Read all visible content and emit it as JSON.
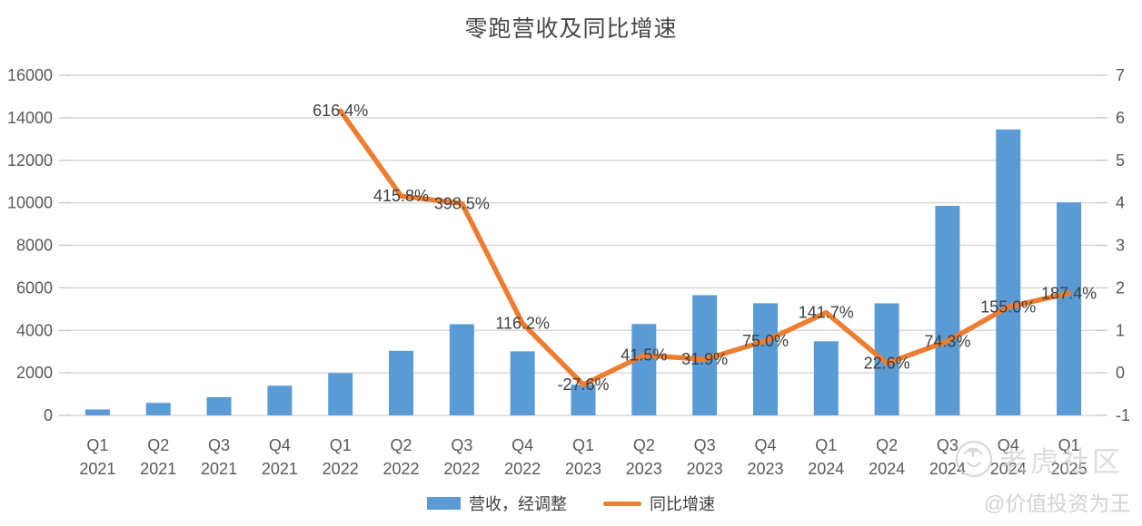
{
  "page": {
    "title": "零跑营收及同比增速"
  },
  "legend": [
    {
      "label": "营收，经调整",
      "type": "bar",
      "color": "#5B9BD5"
    },
    {
      "label": "同比增速",
      "type": "line",
      "color": "#ED7D31"
    }
  ],
  "watermark": {
    "community": "老虎社区",
    "author": "@价值投资为王",
    "logo_icon": "tiger-head-circle-icon",
    "color": "#cccccc"
  },
  "chart_data": {
    "type": "bar",
    "subtype": "combo bar+line, dual axis",
    "title": "零跑营收及同比增速",
    "categories": [
      {
        "quarter": "Q1",
        "year": "2021"
      },
      {
        "quarter": "Q2",
        "year": "2021"
      },
      {
        "quarter": "Q3",
        "year": "2021"
      },
      {
        "quarter": "Q4",
        "year": "2021"
      },
      {
        "quarter": "Q1",
        "year": "2022"
      },
      {
        "quarter": "Q2",
        "year": "2022"
      },
      {
        "quarter": "Q3",
        "year": "2022"
      },
      {
        "quarter": "Q4",
        "year": "2022"
      },
      {
        "quarter": "Q1",
        "year": "2023"
      },
      {
        "quarter": "Q2",
        "year": "2023"
      },
      {
        "quarter": "Q3",
        "year": "2023"
      },
      {
        "quarter": "Q4",
        "year": "2023"
      },
      {
        "quarter": "Q1",
        "year": "2024"
      },
      {
        "quarter": "Q2",
        "year": "2024"
      },
      {
        "quarter": "Q3",
        "year": "2024"
      },
      {
        "quarter": "Q4",
        "year": "2024"
      },
      {
        "quarter": "Q1",
        "year": "2025"
      }
    ],
    "series": [
      {
        "name": "营收，经调整",
        "type": "bar",
        "axis": "left",
        "color": "#5B9BD5",
        "values": [
          278,
          589,
          860,
          1394,
          1992,
          3038,
          4288,
          3014,
          1442,
          4299,
          5656,
          5275,
          3486,
          5271,
          9858,
          13451,
          10019
        ]
      },
      {
        "name": "同比增速",
        "type": "line",
        "axis": "right",
        "color": "#ED7D31",
        "values_percent": [
          null,
          null,
          null,
          null,
          616.4,
          415.8,
          398.5,
          116.2,
          -27.6,
          41.5,
          31.9,
          75.0,
          141.7,
          22.6,
          74.3,
          155.0,
          187.4
        ],
        "labels": [
          null,
          null,
          null,
          null,
          "616.4%",
          "415.8%",
          "398.5%",
          "116.2%",
          "-27.6%",
          "41.5%",
          "31.9%",
          "75.0%",
          "141.7%",
          "22.6%",
          "74.3%",
          "155.0%",
          "187.4%"
        ]
      }
    ],
    "left_axis": {
      "min": 0,
      "max": 16000,
      "step": 2000,
      "tick_labels": [
        "0",
        "2000",
        "4000",
        "6000",
        "8000",
        "10000",
        "12000",
        "14000",
        "16000"
      ]
    },
    "right_axis": {
      "min": -1,
      "max": 7,
      "step": 1,
      "tick_labels": [
        "-1",
        "0",
        "1",
        "2",
        "3",
        "4",
        "5",
        "6",
        "7"
      ]
    },
    "grid": true,
    "gridline_color": "#d9d9d9",
    "axis_text_color": "#595959",
    "data_label_color": "#404040",
    "legend_position": "bottom",
    "data_label_position": "centered on line points"
  }
}
